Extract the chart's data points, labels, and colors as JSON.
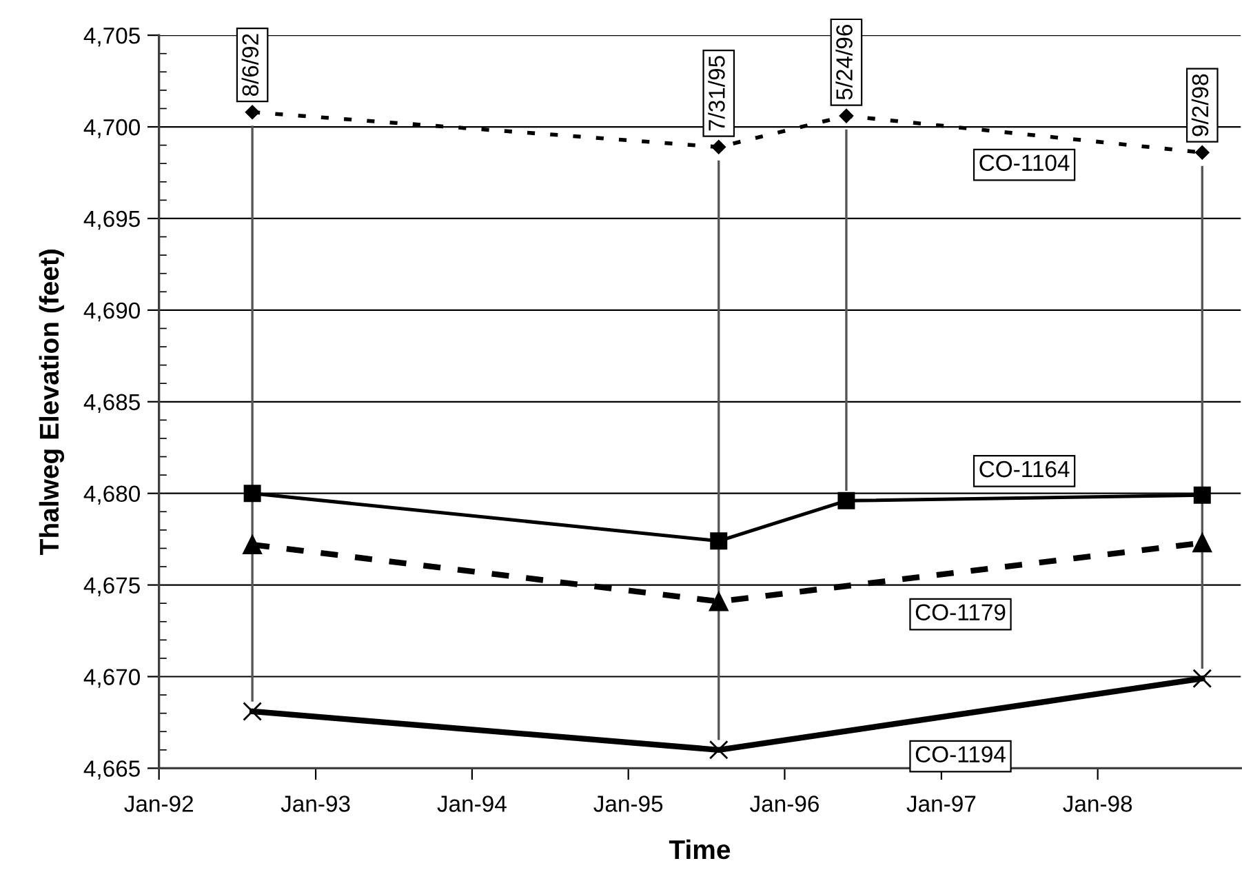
{
  "chart_data": {
    "type": "line",
    "xlabel": "Time",
    "ylabel": "Thalweg Elevation (feet)",
    "series": [
      {
        "name": "CO-1104",
        "color": "#000000",
        "marker": "diamond",
        "line_style": "dotted",
        "x": [
          "1992-08-06",
          "1995-07-31",
          "1996-05-24",
          "1998-09-02"
        ],
        "values": [
          4700.8,
          4698.9,
          4700.6,
          4698.6
        ]
      },
      {
        "name": "CO-1164",
        "color": "#000000",
        "marker": "square",
        "line_style": "solid",
        "x": [
          "1992-08-06",
          "1995-07-31",
          "1996-05-24",
          "1998-09-02"
        ],
        "values": [
          4680.0,
          4677.4,
          4679.6,
          4679.9
        ]
      },
      {
        "name": "CO-1179",
        "color": "#000000",
        "marker": "triangle",
        "line_style": "dashed",
        "x": [
          "1992-08-06",
          "1995-07-31",
          "1998-09-02"
        ],
        "values": [
          4677.2,
          4674.1,
          4677.3
        ]
      },
      {
        "name": "CO-1194",
        "color": "#000000",
        "marker": "cross",
        "line_style": "solid",
        "x": [
          "1992-08-06",
          "1995-07-31",
          "1998-09-02"
        ],
        "values": [
          4668.1,
          4666.0,
          4669.9
        ]
      }
    ],
    "ref_lines": [
      {
        "axis": "x",
        "value": "1992-08-06",
        "label": "8/6/92",
        "color": "#555555"
      },
      {
        "axis": "x",
        "value": "1995-07-31",
        "label": "7/31/95",
        "color": "#555555"
      },
      {
        "axis": "x",
        "value": "1996-05-24",
        "label": "5/24/96",
        "color": "#555555"
      },
      {
        "axis": "x",
        "value": "1998-09-02",
        "label": "9/2/98",
        "color": "#555555"
      }
    ],
    "xlim": [
      "1992-01-01",
      "1998-12-01"
    ],
    "xticks": [
      {
        "value": "1992-01-01",
        "label": "Jan-92"
      },
      {
        "value": "1993-01-01",
        "label": "Jan-93"
      },
      {
        "value": "1994-01-01",
        "label": "Jan-94"
      },
      {
        "value": "1995-01-01",
        "label": "Jan-95"
      },
      {
        "value": "1996-01-01",
        "label": "Jan-96"
      },
      {
        "value": "1997-01-01",
        "label": "Jan-97"
      },
      {
        "value": "1998-01-01",
        "label": "Jan-98"
      }
    ],
    "ylim": [
      4665,
      4705
    ],
    "yticks": [
      {
        "value": 4665,
        "label": "4,665"
      },
      {
        "value": 4670,
        "label": "4,670"
      },
      {
        "value": 4675,
        "label": "4,675"
      },
      {
        "value": 4680,
        "label": "4,680"
      },
      {
        "value": 4685,
        "label": "4,685"
      },
      {
        "value": 4690,
        "label": "4,690"
      },
      {
        "value": 4695,
        "label": "4,695"
      },
      {
        "value": 4700,
        "label": "4,700"
      },
      {
        "value": 4705,
        "label": "4,705"
      }
    ],
    "grid": "y",
    "legend": false
  }
}
